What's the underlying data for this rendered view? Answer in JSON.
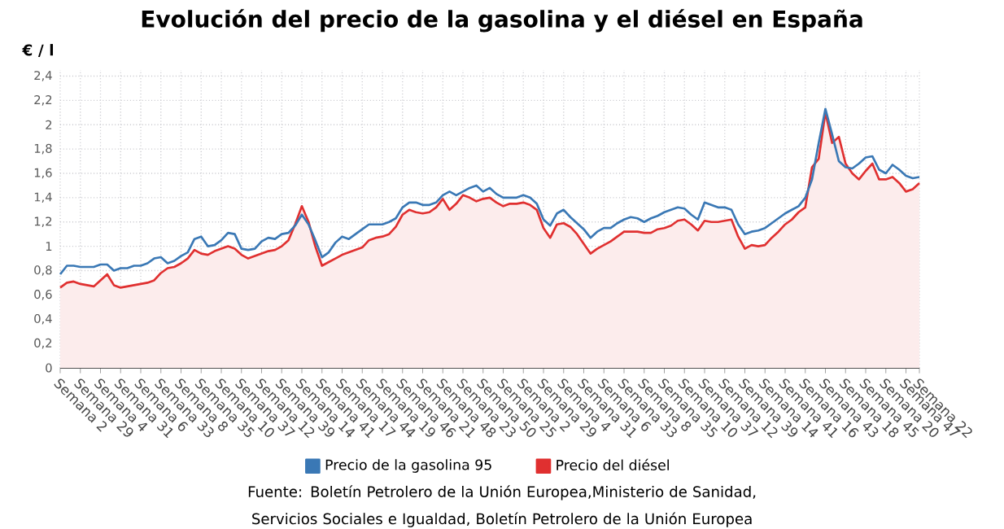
{
  "chart_data": {
    "type": "line",
    "title": "Evolución del precio de la gasolina y el diésel en España",
    "ylabel": "€ / l",
    "annotations": [
      "Fuente: Boletín Petrolero de la Unión Europea,Ministerio de Sanidad, Servicios Sociales e Igualdad, Boletín Petrolero de la Unión Europea"
    ],
    "categories": [
      "Semana 2",
      null,
      null,
      "Semana 29",
      null,
      null,
      "Semana 4",
      null,
      null,
      "Semana 31",
      null,
      null,
      "Semana 6",
      null,
      null,
      "Semana 33",
      null,
      null,
      "Semana 8",
      null,
      null,
      "Semana 35",
      null,
      null,
      "Semana 10",
      null,
      null,
      "Semana 37",
      null,
      null,
      "Semana 12",
      null,
      null,
      "Semana 39",
      null,
      null,
      "Semana 14",
      null,
      null,
      "Semana 41",
      null,
      null,
      "Semana 17",
      null,
      null,
      "Semana 44",
      null,
      null,
      "Semana 19",
      null,
      null,
      "Semana 46",
      null,
      null,
      "Semana 21",
      null,
      null,
      "Semana 48",
      null,
      null,
      "Semana 23",
      null,
      null,
      "Semana 50",
      null,
      null,
      "Semana 25",
      null,
      null,
      "Semana 2",
      null,
      null,
      "Semana 29",
      null,
      null,
      "Semana 4",
      null,
      null,
      "Semana 31",
      null,
      null,
      "Semana 6",
      null,
      null,
      "Semana 33",
      null,
      null,
      "Semana 8",
      null,
      null,
      "Semana 35",
      null,
      null,
      "Semana 10",
      null,
      null,
      "Semana 37",
      null,
      null,
      "Semana 12",
      null,
      null,
      "Semana 39",
      null,
      null,
      "Semana 14",
      null,
      null,
      "Semana 41",
      null,
      null,
      "Semana 16",
      null,
      null,
      "Semana 43",
      null,
      null,
      "Semana 18",
      null,
      null,
      "Semana 45",
      null,
      null,
      "Semana 20",
      null,
      null,
      "Semana 47",
      null,
      "Semana 22"
    ],
    "series": [
      {
        "name": "Precio de la gasolina 95",
        "color": "#3a78b5",
        "values": [
          0.77,
          0.84,
          0.84,
          0.83,
          0.83,
          0.83,
          0.85,
          0.85,
          0.8,
          0.82,
          0.82,
          0.84,
          0.84,
          0.86,
          0.9,
          0.91,
          0.86,
          0.88,
          0.92,
          0.95,
          1.06,
          1.08,
          1.0,
          1.01,
          1.05,
          1.11,
          1.1,
          0.98,
          0.97,
          0.98,
          1.04,
          1.07,
          1.06,
          1.1,
          1.11,
          1.17,
          1.26,
          1.18,
          1.05,
          0.91,
          0.95,
          1.03,
          1.08,
          1.06,
          1.1,
          1.14,
          1.18,
          1.18,
          1.18,
          1.2,
          1.23,
          1.32,
          1.36,
          1.36,
          1.34,
          1.34,
          1.36,
          1.42,
          1.45,
          1.42,
          1.45,
          1.48,
          1.5,
          1.45,
          1.48,
          1.43,
          1.4,
          1.4,
          1.4,
          1.42,
          1.4,
          1.35,
          1.22,
          1.17,
          1.27,
          1.3,
          1.24,
          1.19,
          1.14,
          1.07,
          1.12,
          1.15,
          1.15,
          1.19,
          1.22,
          1.24,
          1.23,
          1.2,
          1.23,
          1.25,
          1.28,
          1.3,
          1.32,
          1.31,
          1.26,
          1.22,
          1.36,
          1.34,
          1.32,
          1.32,
          1.3,
          1.18,
          1.1,
          1.12,
          1.13,
          1.15,
          1.19,
          1.23,
          1.27,
          1.3,
          1.33,
          1.4,
          1.55,
          1.85,
          2.13,
          1.92,
          1.7,
          1.65,
          1.64,
          1.68,
          1.73,
          1.74,
          1.63,
          1.6,
          1.67,
          1.63,
          1.58,
          1.56,
          1.57
        ]
      },
      {
        "name": "Precio del diésel",
        "color": "#e03030",
        "type": "area",
        "values": [
          0.66,
          0.7,
          0.71,
          0.69,
          0.68,
          0.67,
          0.72,
          0.77,
          0.68,
          0.66,
          0.67,
          0.68,
          0.69,
          0.7,
          0.72,
          0.78,
          0.82,
          0.83,
          0.86,
          0.9,
          0.97,
          0.94,
          0.93,
          0.96,
          0.98,
          1.0,
          0.98,
          0.93,
          0.9,
          0.92,
          0.94,
          0.96,
          0.97,
          1.0,
          1.05,
          1.18,
          1.33,
          1.2,
          1.0,
          0.84,
          0.87,
          0.9,
          0.93,
          0.95,
          0.97,
          0.99,
          1.05,
          1.07,
          1.08,
          1.1,
          1.16,
          1.26,
          1.3,
          1.28,
          1.27,
          1.28,
          1.32,
          1.39,
          1.3,
          1.35,
          1.42,
          1.4,
          1.37,
          1.39,
          1.4,
          1.36,
          1.33,
          1.35,
          1.35,
          1.36,
          1.34,
          1.3,
          1.15,
          1.07,
          1.18,
          1.19,
          1.16,
          1.1,
          1.02,
          0.94,
          0.98,
          1.01,
          1.04,
          1.08,
          1.12,
          1.12,
          1.12,
          1.11,
          1.11,
          1.14,
          1.15,
          1.17,
          1.21,
          1.22,
          1.18,
          1.13,
          1.21,
          1.2,
          1.2,
          1.21,
          1.22,
          1.08,
          0.98,
          1.01,
          1.0,
          1.01,
          1.07,
          1.12,
          1.18,
          1.22,
          1.28,
          1.32,
          1.65,
          1.72,
          2.1,
          1.85,
          1.9,
          1.68,
          1.6,
          1.55,
          1.62,
          1.68,
          1.55,
          1.55,
          1.57,
          1.52,
          1.45,
          1.47,
          1.52
        ]
      }
    ],
    "ylim": [
      0,
      2.45
    ],
    "yticks": [
      0,
      {
        "value": 0.2,
        "label": "0,2"
      },
      {
        "value": 0.4,
        "label": "0,4"
      },
      {
        "value": 0.6,
        "label": "0,6"
      },
      {
        "value": 0.8,
        "label": "0,8"
      },
      1,
      {
        "value": 1.2,
        "label": "1,2"
      },
      {
        "value": 1.4,
        "label": "1,4"
      },
      {
        "value": 1.6,
        "label": "1,6"
      },
      {
        "value": 1.8,
        "label": "1,8"
      },
      2,
      {
        "value": 2.2,
        "label": "2,2"
      },
      {
        "value": 2.4,
        "label": "2,4"
      }
    ],
    "grid": true,
    "legend": "bottom",
    "marker": "none"
  }
}
